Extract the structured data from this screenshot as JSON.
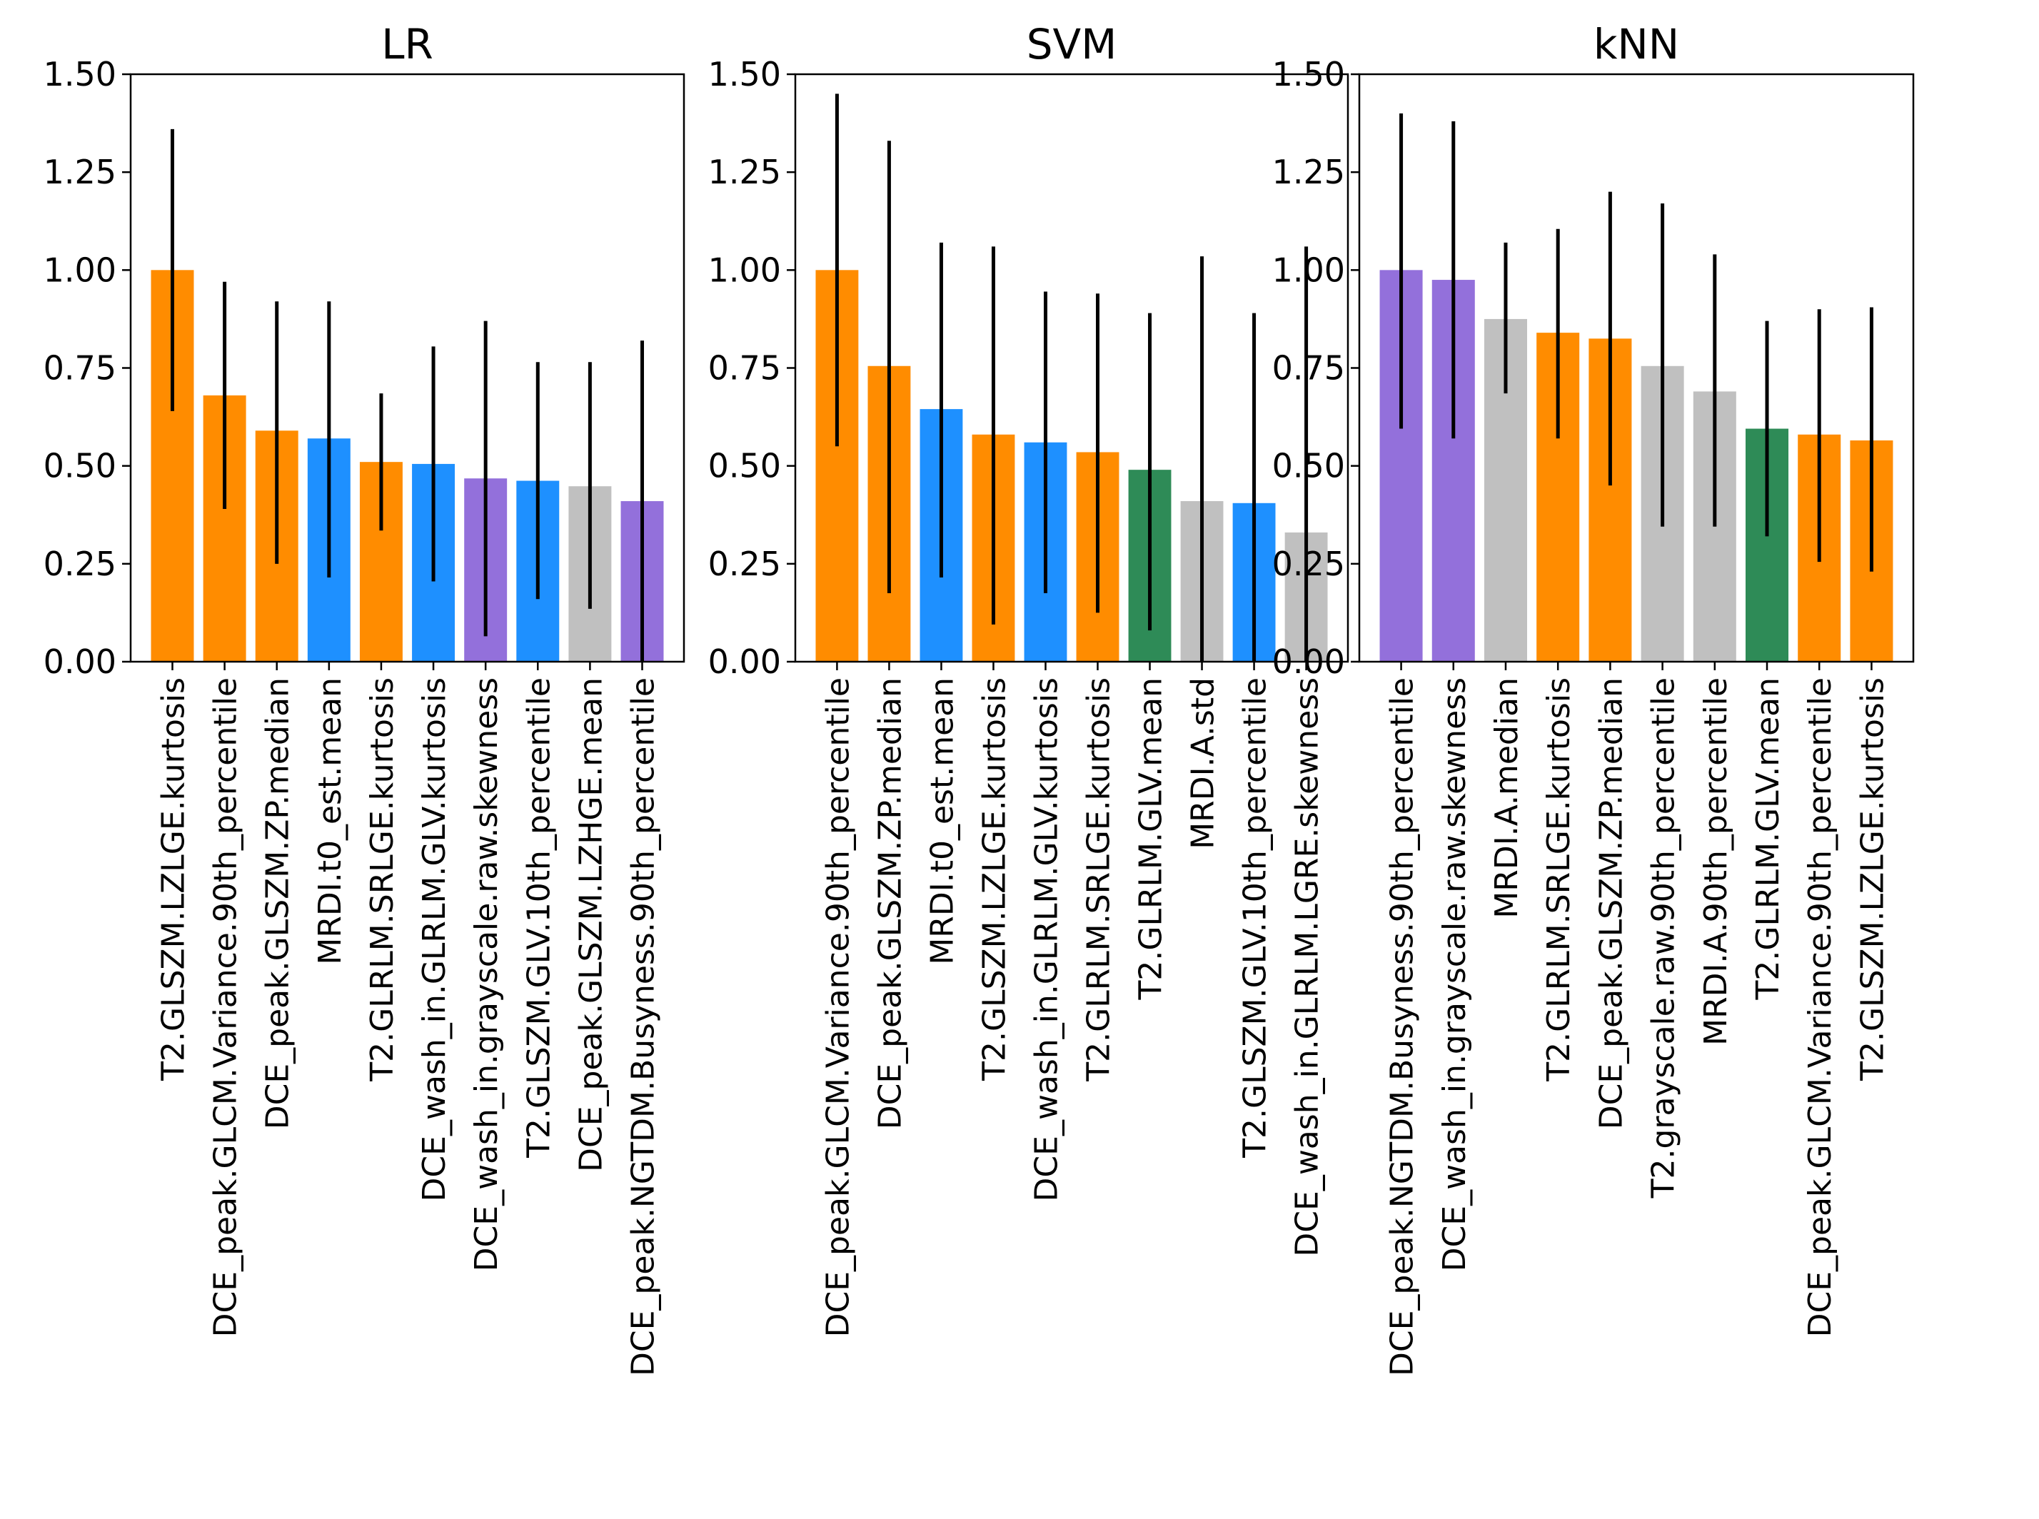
{
  "chart_data": [
    {
      "type": "bar",
      "title": "LR",
      "xlabel": "",
      "ylabel": "",
      "ylim": [
        0,
        1.5
      ],
      "yticks": [
        "0.00",
        "0.25",
        "0.50",
        "0.75",
        "1.00",
        "1.25",
        "1.50"
      ],
      "categories": [
        "T2.GLSZM.LZLGE.kurtosis",
        "DCE_peak.GLCM.Variance.90th_percentile",
        "DCE_peak.GLSZM.ZP.median",
        "MRDI.t0_est.mean",
        "T2.GLRLM.SRLGE.kurtosis",
        "DCE_wash_in.GLRLM.GLV.kurtosis",
        "DCE_wash_in.grayscale.raw.skewness",
        "T2.GLSZM.GLV.10th_percentile",
        "DCE_peak.GLSZM.LZHGE.mean",
        "DCE_peak.NGTDM.Busyness.90th_percentile"
      ],
      "values": [
        1.0,
        0.68,
        0.59,
        0.57,
        0.51,
        0.505,
        0.468,
        0.462,
        0.448,
        0.41
      ],
      "error_low": [
        0.64,
        0.39,
        0.25,
        0.215,
        0.335,
        0.205,
        0.065,
        0.16,
        0.135,
        0.0
      ],
      "error_high": [
        1.36,
        0.97,
        0.92,
        0.92,
        0.685,
        0.805,
        0.87,
        0.765,
        0.765,
        0.82
      ],
      "colors": [
        "#FF8C00",
        "#FF8C00",
        "#FF8C00",
        "#1E90FF",
        "#FF8C00",
        "#1E90FF",
        "#9370DB",
        "#1E90FF",
        "#C0C0C0",
        "#9370DB"
      ]
    },
    {
      "type": "bar",
      "title": "SVM",
      "xlabel": "",
      "ylabel": "",
      "ylim": [
        0,
        1.5
      ],
      "yticks": [
        "0.00",
        "0.25",
        "0.50",
        "0.75",
        "1.00",
        "1.25",
        "1.50"
      ],
      "categories": [
        "DCE_peak.GLCM.Variance.90th_percentile",
        "DCE_peak.GLSZM.ZP.median",
        "MRDI.t0_est.mean",
        "T2.GLSZM.LZLGE.kurtosis",
        "DCE_wash_in.GLRLM.GLV.kurtosis",
        "T2.GLRLM.SRLGE.kurtosis",
        "T2.GLRLM.GLV.mean",
        "MRDI.A.std",
        "T2.GLSZM.GLV.10th_percentile",
        "DCE_wash_in.GLRLM.LGRE.skewness"
      ],
      "values": [
        1.0,
        0.755,
        0.645,
        0.58,
        0.56,
        0.535,
        0.49,
        0.41,
        0.405,
        0.33
      ],
      "error_low": [
        0.55,
        0.175,
        0.215,
        0.095,
        0.175,
        0.125,
        0.08,
        0.0,
        0.0,
        0.0
      ],
      "error_high": [
        1.45,
        1.33,
        1.07,
        1.06,
        0.945,
        0.94,
        0.89,
        1.035,
        0.89,
        1.06
      ],
      "colors": [
        "#FF8C00",
        "#FF8C00",
        "#1E90FF",
        "#FF8C00",
        "#1E90FF",
        "#FF8C00",
        "#2E8B57",
        "#C0C0C0",
        "#1E90FF",
        "#C0C0C0"
      ]
    },
    {
      "type": "bar",
      "title": "kNN",
      "xlabel": "",
      "ylabel": "",
      "ylim": [
        0,
        1.5
      ],
      "yticks": [
        "0.00",
        "0.25",
        "0.50",
        "0.75",
        "1.00",
        "1.25",
        "1.50"
      ],
      "categories": [
        "DCE_peak.NGTDM.Busyness.90th_percentile",
        "DCE_wash_in.grayscale.raw.skewness",
        "MRDI.A.median",
        "T2.GLRLM.SRLGE.kurtosis",
        "DCE_peak.GLSZM.ZP.median",
        "T2.grayscale.raw.90th_percentile",
        "MRDI.A.90th_percentile",
        "T2.GLRLM.GLV.mean",
        "DCE_peak.GLCM.Variance.90th_percentile",
        "T2.GLSZM.LZLGE.kurtosis"
      ],
      "values": [
        1.0,
        0.975,
        0.875,
        0.84,
        0.825,
        0.755,
        0.69,
        0.595,
        0.58,
        0.565
      ],
      "error_low": [
        0.595,
        0.57,
        0.685,
        0.57,
        0.45,
        0.345,
        0.345,
        0.32,
        0.255,
        0.23
      ],
      "error_high": [
        1.4,
        1.38,
        1.07,
        1.105,
        1.2,
        1.17,
        1.04,
        0.87,
        0.9,
        0.905
      ],
      "colors": [
        "#9370DB",
        "#9370DB",
        "#C0C0C0",
        "#FF8C00",
        "#FF8C00",
        "#C0C0C0",
        "#C0C0C0",
        "#2E8B57",
        "#FF8C00",
        "#FF8C00"
      ]
    }
  ]
}
